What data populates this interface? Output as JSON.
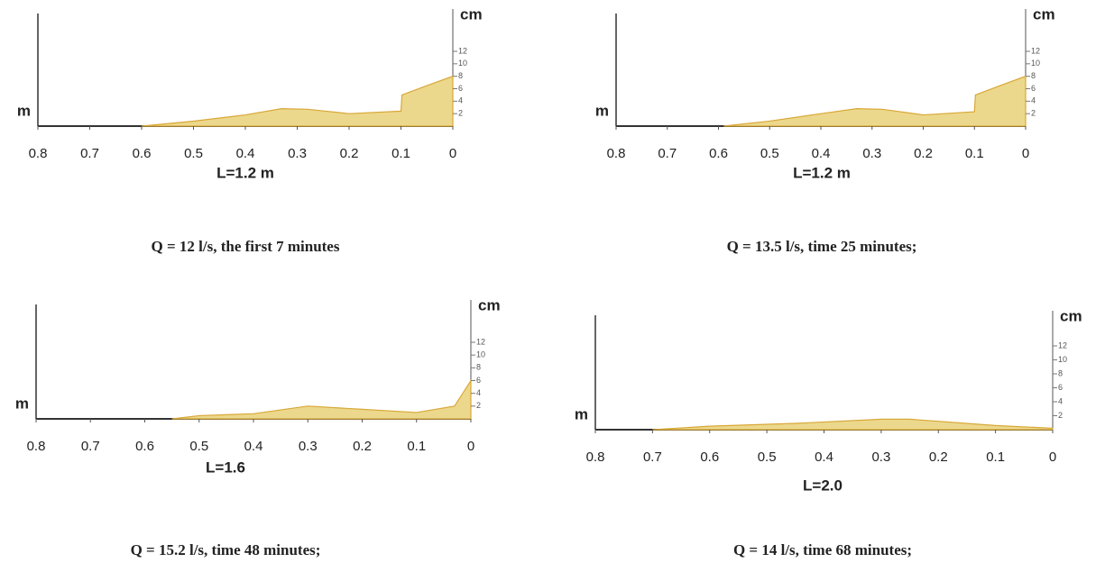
{
  "chart_data": [
    {
      "type": "area",
      "title": "L=1.2 m",
      "caption": "Q = 12 l/s, the first 7 minutes",
      "xlabel": "m",
      "ylabel": "cm",
      "x": [
        0.6,
        0.5,
        0.4,
        0.33,
        0.28,
        0.2,
        0.1,
        0.098,
        0.05,
        0
      ],
      "values": [
        0,
        0.8,
        1.8,
        2.8,
        2.7,
        2.0,
        2.4,
        5.0,
        6.5,
        8.0
      ],
      "color": "#ecd88c",
      "xlim": [
        0.8,
        0
      ],
      "xticks": [
        0.8,
        0.7,
        0.6,
        0.5,
        0.4,
        0.3,
        0.2,
        0.1,
        0
      ],
      "ylim": [
        0,
        12
      ],
      "yticks": [
        2,
        4,
        6,
        8,
        10,
        12
      ]
    },
    {
      "type": "area",
      "title": "L=1.2 m",
      "caption": "Q = 13.5 l/s, time 25 minutes;",
      "xlabel": "m",
      "ylabel": "cm",
      "x": [
        0.59,
        0.5,
        0.4,
        0.33,
        0.28,
        0.2,
        0.1,
        0.098,
        0.05,
        0
      ],
      "values": [
        0,
        0.8,
        2.0,
        2.8,
        2.7,
        1.8,
        2.3,
        5.0,
        6.5,
        8.0
      ],
      "color": "#ecd88c",
      "xlim": [
        0.8,
        0
      ],
      "xticks": [
        0.8,
        0.7,
        0.6,
        0.5,
        0.4,
        0.3,
        0.2,
        0.1,
        0
      ],
      "ylim": [
        0,
        12
      ],
      "yticks": [
        2,
        4,
        6,
        8,
        10,
        12
      ]
    },
    {
      "type": "area",
      "title": "L=1.6",
      "caption": "Q = 15.2 l/s, time 48 minutes;",
      "xlabel": "m",
      "ylabel": "cm",
      "x": [
        0.55,
        0.5,
        0.4,
        0.3,
        0.2,
        0.1,
        0.03,
        0
      ],
      "values": [
        0,
        0.5,
        0.8,
        2.0,
        1.5,
        1.0,
        2.0,
        6.0
      ],
      "color": "#ecd88c",
      "xlim": [
        0.8,
        0
      ],
      "xticks": [
        0.8,
        0.7,
        0.6,
        0.5,
        0.4,
        0.3,
        0.2,
        0.1,
        0
      ],
      "ylim": [
        0,
        12
      ],
      "yticks": [
        2,
        4,
        6,
        8,
        10,
        12
      ]
    },
    {
      "type": "area",
      "title": "L=2.0",
      "caption": "Q = 14 l/s, time 68 minutes;",
      "xlabel": "m",
      "ylabel": "cm",
      "x": [
        0.7,
        0.6,
        0.45,
        0.3,
        0.25,
        0.1,
        0
      ],
      "values": [
        0,
        0.5,
        0.9,
        1.5,
        1.5,
        0.6,
        0.2
      ],
      "color": "#ecd88c",
      "xlim": [
        0.8,
        0
      ],
      "xticks": [
        0.8,
        0.7,
        0.6,
        0.5,
        0.4,
        0.3,
        0.2,
        0.1,
        0
      ],
      "ylim": [
        0,
        12
      ],
      "yticks": [
        2,
        4,
        6,
        8,
        10,
        12
      ]
    }
  ]
}
